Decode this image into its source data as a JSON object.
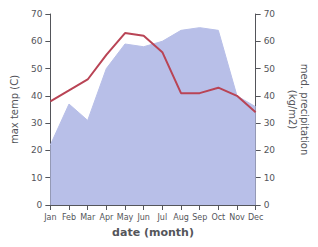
{
  "chart_data": {
    "type": "line",
    "xlabel": "date (month)",
    "ylabel": "max temp (C)",
    "y2label": "med. precipitation\n(kg/m2)",
    "categories": [
      "Jan",
      "Feb",
      "Mar",
      "Apr",
      "May",
      "Jun",
      "Jul",
      "Aug",
      "Sep",
      "Oct",
      "Nov",
      "Dec"
    ],
    "series": [
      {
        "type": "area",
        "axis": "y2",
        "color": "#b8bfe8",
        "values": [
          22,
          37,
          31,
          50,
          59,
          58,
          60,
          64,
          65,
          64,
          40,
          36
        ]
      },
      {
        "type": "line",
        "color": "#b94455",
        "values": [
          38,
          42,
          46,
          55,
          63,
          62,
          56,
          41,
          41,
          43,
          40,
          34
        ]
      }
    ],
    "ylim": [
      0,
      70
    ],
    "yticks": [
      0,
      10,
      20,
      30,
      40,
      50,
      60,
      70
    ],
    "y2lim": [
      0,
      70
    ],
    "y2ticks": [
      0,
      10,
      20,
      30,
      40,
      50,
      60,
      70
    ],
    "grid": false
  }
}
